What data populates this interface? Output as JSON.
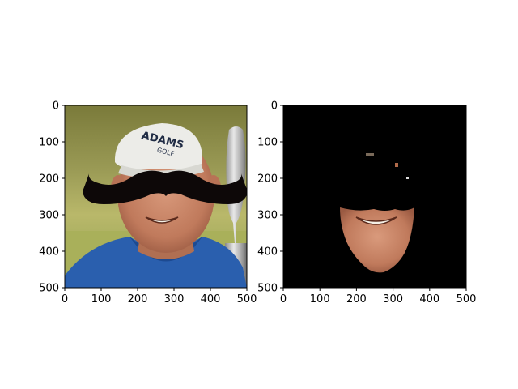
{
  "figure": {
    "panels": [
      {
        "name": "left-panel",
        "content": "photo of a smiling man wearing a white cap and blue shirt holding a trophy, with a large black mustache overlaid"
      },
      {
        "name": "right-panel",
        "content": "black background with only the lower face region (chin, mouth, smile) visible; mustache area blacked out"
      }
    ],
    "cap_text": {
      "line1": "ADAMS",
      "line2": "GOLF"
    }
  },
  "chart_data": [
    {
      "type": "image",
      "xlim": [
        0,
        500
      ],
      "ylim": [
        500,
        0
      ],
      "xticks": [
        0,
        100,
        200,
        300,
        400,
        500
      ],
      "yticks": [
        0,
        100,
        200,
        300,
        400,
        500
      ],
      "x_tick_labels": [
        "0",
        "100",
        "200",
        "300",
        "400",
        "500"
      ],
      "y_tick_labels": [
        "0",
        "100",
        "200",
        "300",
        "400",
        "500"
      ]
    },
    {
      "type": "image",
      "xlim": [
        0,
        500
      ],
      "ylim": [
        500,
        0
      ],
      "xticks": [
        0,
        100,
        200,
        300,
        400,
        500
      ],
      "yticks": [
        0,
        100,
        200,
        300,
        400,
        500
      ],
      "x_tick_labels": [
        "0",
        "100",
        "200",
        "300",
        "400",
        "500"
      ],
      "y_tick_labels": [
        "0",
        "100",
        "200",
        "300",
        "400",
        "500"
      ]
    }
  ]
}
